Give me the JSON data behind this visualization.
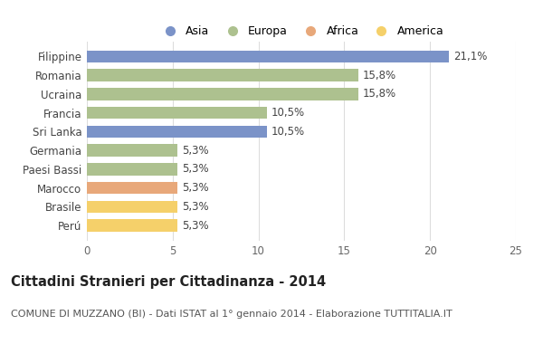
{
  "categories": [
    "Filippine",
    "Romania",
    "Ucraina",
    "Francia",
    "Sri Lanka",
    "Germania",
    "Paesi Bassi",
    "Marocco",
    "Brasile",
    "Perú"
  ],
  "values": [
    21.1,
    15.8,
    15.8,
    10.5,
    10.5,
    5.3,
    5.3,
    5.3,
    5.3,
    5.3
  ],
  "labels": [
    "21,1%",
    "15,8%",
    "15,8%",
    "10,5%",
    "10,5%",
    "5,3%",
    "5,3%",
    "5,3%",
    "5,3%",
    "5,3%"
  ],
  "colors": [
    "#7b93c8",
    "#adc18f",
    "#adc18f",
    "#adc18f",
    "#7b93c8",
    "#adc18f",
    "#adc18f",
    "#e8a87a",
    "#f5d06a",
    "#f5d06a"
  ],
  "legend_labels": [
    "Asia",
    "Europa",
    "Africa",
    "America"
  ],
  "legend_colors": [
    "#7b93c8",
    "#adc18f",
    "#e8a87a",
    "#f5d06a"
  ],
  "title": "Cittadini Stranieri per Cittadinanza - 2014",
  "subtitle": "COMUNE DI MUZZANO (BI) - Dati ISTAT al 1° gennaio 2014 - Elaborazione TUTTITALIA.IT",
  "xlim": [
    0,
    25
  ],
  "xticks": [
    0,
    5,
    10,
    15,
    20,
    25
  ],
  "background_color": "#ffffff",
  "bar_height": 0.65,
  "title_fontsize": 10.5,
  "subtitle_fontsize": 8.0,
  "label_fontsize": 8.5,
  "ytick_fontsize": 8.5,
  "xtick_fontsize": 8.5,
  "legend_fontsize": 9.0
}
